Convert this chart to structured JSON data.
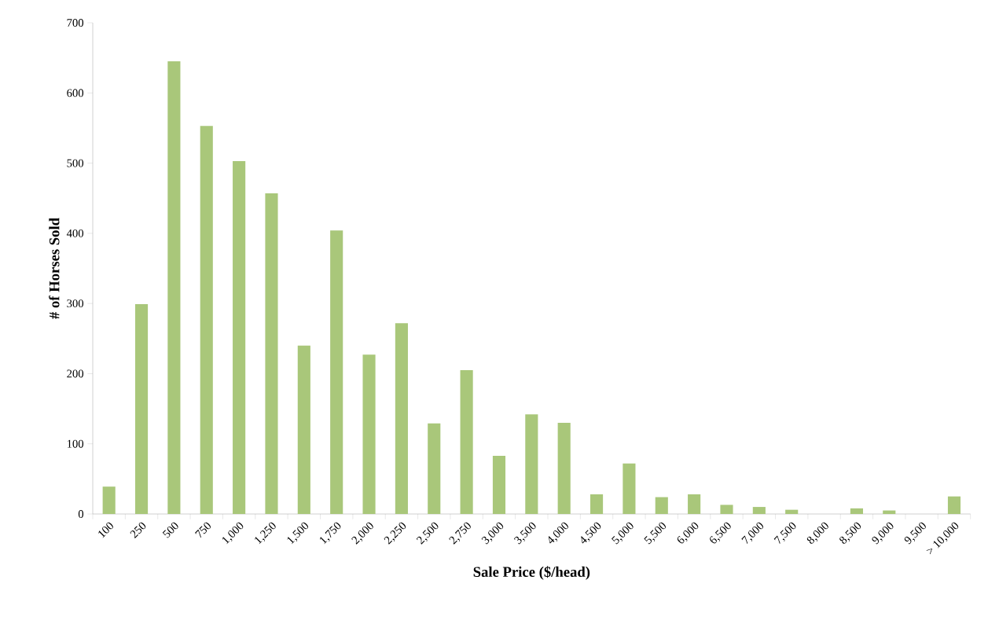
{
  "chart_data": {
    "type": "bar",
    "xlabel": "Sale Price ($/head)",
    "ylabel": "# of Horses Sold",
    "color": "#a9c77a",
    "categories": [
      "100",
      "250",
      "500",
      "750",
      "1,000",
      "1,250",
      "1,500",
      "1,750",
      "2,000",
      "2,250",
      "2,500",
      "2,750",
      "3,000",
      "3,500",
      "4,000",
      "4,500",
      "5,000",
      "5,500",
      "6,000",
      "6,500",
      "7,000",
      "7,500",
      "8,000",
      "8,500",
      "9,000",
      "9,500",
      "> 10,000"
    ],
    "values": [
      39,
      299,
      645,
      553,
      503,
      457,
      240,
      404,
      227,
      272,
      129,
      205,
      83,
      142,
      130,
      28,
      72,
      24,
      28,
      13,
      10,
      6,
      0,
      8,
      5,
      0,
      25
    ],
    "ylim": [
      0,
      700
    ],
    "yticks": [
      0,
      100,
      200,
      300,
      400,
      500,
      600,
      700
    ],
    "grid": false
  }
}
